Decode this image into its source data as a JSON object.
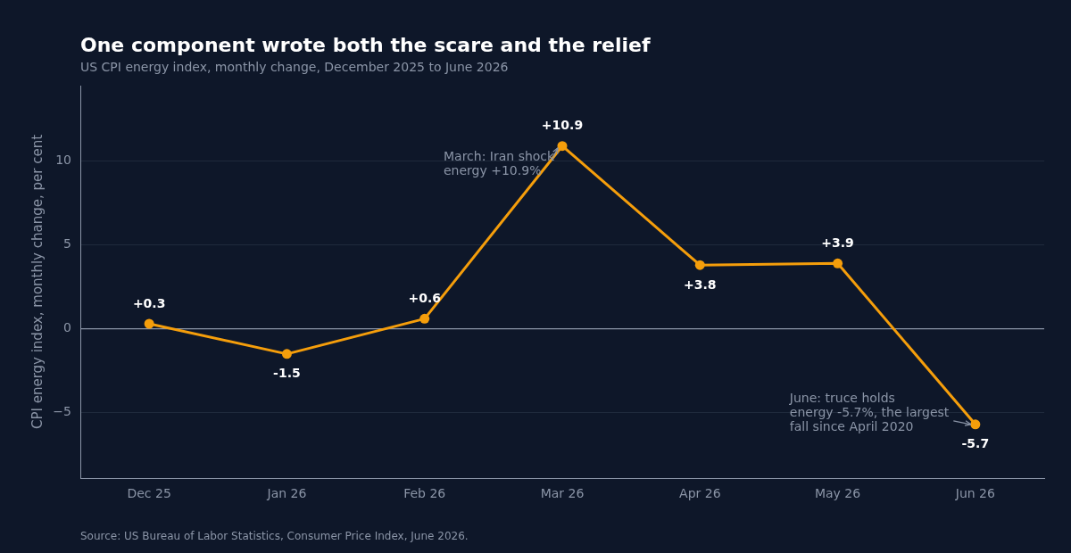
{
  "chart_data": {
    "type": "line",
    "title": "One component wrote both the scare and the relief",
    "subtitle": "US CPI energy index, monthly change, December 2025 to June 2026",
    "ylabel": "CPI energy index, monthly change, per cent",
    "categories": [
      "Dec 25",
      "Jan 26",
      "Feb 26",
      "Mar 26",
      "Apr 26",
      "May 26",
      "Jun 26"
    ],
    "series": [
      {
        "color": "#f59e0b",
        "values": [
          0.3,
          -1.5,
          0.6,
          10.9,
          3.8,
          3.9,
          -5.7
        ],
        "value_labels": [
          "+0.3",
          "-1.5",
          "+0.6",
          "+10.9",
          "+3.8",
          "+3.9",
          "-5.7"
        ]
      }
    ],
    "ylim": [
      -8.9,
      14.5
    ],
    "yticks": [
      {
        "value": -5,
        "label": "−5"
      },
      0,
      5,
      10
    ],
    "grid": "y",
    "legend": false,
    "marker": "circle",
    "line_style": "solid",
    "ref_lines": [
      {
        "axis": "y",
        "value": 0,
        "color": "#8b95a7"
      }
    ],
    "annotations": [
      {
        "text": "March: Iran shock\nenergy +10.9%",
        "x": "Mar 26",
        "y": 10.9
      },
      {
        "text": "June: truce holds\nenergy -5.7%, the largest\nfall since April 2020",
        "x": "Jun 26",
        "y": -5.7
      },
      "Source: US Bureau of Labor Statistics, Consumer Price Index, June 2026."
    ]
  }
}
